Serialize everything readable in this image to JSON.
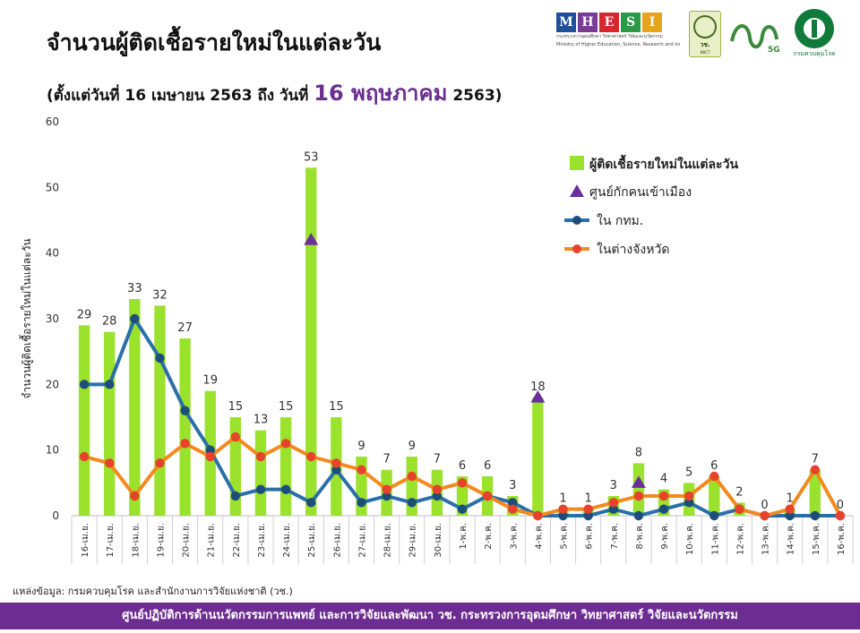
{
  "header": {
    "title": "จำนวนผู้ติดเชื้อรายใหม่ในแต่ละวัน",
    "subtitle_prefix": "(ตั้งแต่วันที่ 16 เมษายน 2563 ถึง วันที่",
    "subtitle_highlight": "16 พฤษภาคม",
    "subtitle_suffix": "2563)"
  },
  "logos": {
    "mhesi_letters": [
      "M",
      "H",
      "E",
      "S",
      "I"
    ],
    "mhesi_colors": [
      "#1f4e9a",
      "#7a3b98",
      "#d8262e",
      "#2a9a47",
      "#e8a31d"
    ],
    "mhesi_sub1": "กระทรวงการอุดมศึกษา วิทยาศาสตร์ วิจัยและนวัตกรรม",
    "mhesi_sub2": "Ministry of Higher Education, Science, Research and Innovation",
    "nrct_text": "วช.",
    "nrct_sub": "NRCT",
    "fiveg_text": "5G",
    "dcd_text": "กรมควบคุมโรค"
  },
  "chart_data": {
    "type": "bar",
    "ylabel": "จำนวนผู้ติดเชื้อรายใหม่ในแต่ละวัน",
    "ylim": [
      0,
      60
    ],
    "yticks": [
      0,
      10,
      20,
      30,
      40,
      50,
      60
    ],
    "categories": [
      "16-เม.ย.",
      "17-เม.ย.",
      "18-เม.ย.",
      "19-เม.ย.",
      "20-เม.ย.",
      "21-เม.ย.",
      "22-เม.ย.",
      "23-เม.ย.",
      "24-เม.ย.",
      "25-เม.ย.",
      "26-เม.ย.",
      "27-เม.ย.",
      "28-เม.ย.",
      "29-เม.ย.",
      "30-เม.ย.",
      "1-พ.ค.",
      "2-พ.ค.",
      "3-พ.ค.",
      "4-พ.ค.",
      "5-พ.ค.",
      "6-พ.ค.",
      "7-พ.ค.",
      "8-พ.ค.",
      "9-พ.ค.",
      "10-พ.ค.",
      "11-พ.ค.",
      "12-พ.ค.",
      "13-พ.ค.",
      "14-พ.ค.",
      "15-พ.ค.",
      "16-พ.ค."
    ],
    "legend_position": "top-right",
    "grid": false,
    "series": [
      {
        "name": "ผู้ติดเชื้อรายใหม่ในแต่ละวัน",
        "kind": "bar",
        "color": "#9be22d",
        "values": [
          29,
          28,
          33,
          32,
          27,
          19,
          15,
          13,
          15,
          53,
          15,
          9,
          7,
          9,
          7,
          6,
          6,
          3,
          18,
          1,
          1,
          3,
          8,
          4,
          5,
          6,
          2,
          0,
          1,
          7,
          0
        ]
      },
      {
        "name": "ศูนย์กักคนเข้าเมือง",
        "kind": "marker",
        "color": "#6a2f9a",
        "points": [
          {
            "category": "25-เม.ย.",
            "value": 42
          },
          {
            "category": "4-พ.ค.",
            "value": 18
          },
          {
            "category": "8-พ.ค.",
            "value": 5
          }
        ]
      },
      {
        "name": "ใน กทม.",
        "kind": "line",
        "color": "#2a6fa8",
        "marker_color": "#1d4d7a",
        "values": [
          20,
          20,
          30,
          24,
          16,
          10,
          3,
          4,
          4,
          2,
          7,
          2,
          3,
          2,
          3,
          1,
          3,
          2,
          0,
          0,
          0,
          1,
          0,
          1,
          2,
          0,
          1,
          0,
          0,
          0,
          0
        ]
      },
      {
        "name": "ในต่างจังหวัด",
        "kind": "line",
        "color": "#f28a1e",
        "marker_color": "#e8412c",
        "values": [
          9,
          8,
          3,
          8,
          11,
          9,
          12,
          9,
          11,
          9,
          8,
          7,
          4,
          6,
          4,
          5,
          3,
          1,
          0,
          1,
          1,
          2,
          3,
          3,
          3,
          6,
          1,
          0,
          1,
          7,
          0
        ]
      }
    ]
  },
  "source": "แหล่งข้อมูล: กรมควบคุมโรค และสำนักงานการวิจัยแห่งชาติ (วช.)",
  "footer": "ศูนย์ปฏิบัติการด้านนวัตกรรมการแพทย์ และการวิจัยและพัฒนา วช. กระทรวงการอุดมศึกษา วิทยาศาสตร์ วิจัยและนวัตกรรม"
}
